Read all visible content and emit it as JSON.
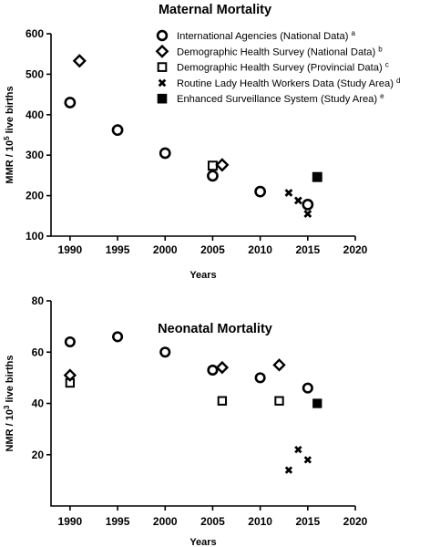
{
  "chart_data": [
    {
      "type": "scatter",
      "title": "Maternal Mortality",
      "xlabel": "Years",
      "ylabel": "MMR / 10",
      "ylabel_sup": "5",
      "ylabel_tail": " live births",
      "xlim": [
        1988,
        2020
      ],
      "ylim": [
        100,
        600
      ],
      "xticks": [
        1990,
        1995,
        2000,
        2005,
        2010,
        2015,
        2020
      ],
      "yticks": [
        100,
        200,
        300,
        400,
        500,
        600
      ],
      "legend_position": "top-right",
      "series": [
        {
          "name": "International Agencies (National Data)",
          "sup": "a",
          "marker": "circle",
          "points": [
            [
              1990,
              430
            ],
            [
              1995,
              362
            ],
            [
              2000,
              305
            ],
            [
              2005,
              249
            ],
            [
              2010,
              210
            ],
            [
              2015,
              178
            ]
          ]
        },
        {
          "name": "Demographic Health Survey (National Data)",
          "sup": "b",
          "marker": "diamond",
          "points": [
            [
              1991,
              533
            ],
            [
              2006,
              276
            ]
          ]
        },
        {
          "name": "Demographic Health Survey (Provincial Data)",
          "sup": "c",
          "marker": "square-open",
          "points": [
            [
              2005,
              274
            ]
          ]
        },
        {
          "name": "Routine Lady Health Workers Data (Study Area)",
          "sup": "d",
          "marker": "x",
          "points": [
            [
              2013,
              207
            ],
            [
              2014,
              188
            ],
            [
              2015,
              155
            ]
          ]
        },
        {
          "name": "Enhanced Surveillance System (Study Area)",
          "sup": "e",
          "marker": "square-filled",
          "points": [
            [
              2016,
              246
            ]
          ]
        }
      ]
    },
    {
      "type": "scatter",
      "title": "Neonatal Mortality",
      "xlabel": "Years",
      "ylabel": "NMR / 10",
      "ylabel_sup": "3",
      "ylabel_tail": " live births",
      "xlim": [
        1988,
        2020
      ],
      "ylim": [
        0,
        80
      ],
      "xticks": [
        1990,
        1995,
        2000,
        2005,
        2010,
        2015,
        2020
      ],
      "yticks": [
        20,
        40,
        60,
        80
      ],
      "series": [
        {
          "marker": "circle",
          "points": [
            [
              1990,
              64
            ],
            [
              1995,
              66
            ],
            [
              2000,
              60
            ],
            [
              2005,
              53
            ],
            [
              2010,
              50
            ],
            [
              2015,
              46
            ]
          ]
        },
        {
          "marker": "diamond",
          "points": [
            [
              1990,
              51
            ],
            [
              2006,
              54
            ],
            [
              2012,
              55
            ]
          ]
        },
        {
          "marker": "square-open",
          "points": [
            [
              1990,
              48
            ],
            [
              2006,
              41
            ],
            [
              2012,
              41
            ]
          ]
        },
        {
          "marker": "x",
          "points": [
            [
              2013,
              14
            ],
            [
              2014,
              22
            ],
            [
              2015,
              18
            ]
          ]
        },
        {
          "marker": "square-filled",
          "points": [
            [
              2016,
              40
            ]
          ]
        }
      ]
    }
  ]
}
